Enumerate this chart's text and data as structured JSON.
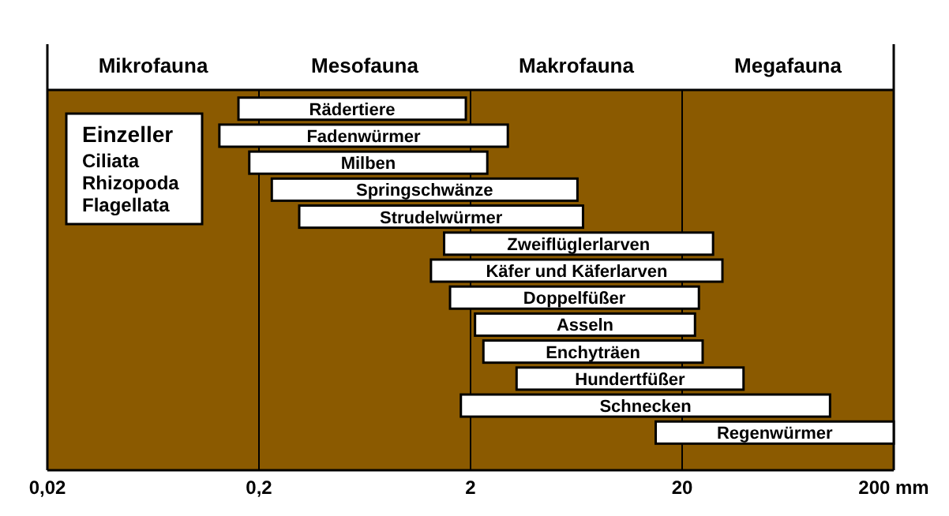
{
  "chart_data": {
    "type": "bar",
    "orientation": "horizontal",
    "log": "x",
    "categories": [
      "Rädertiere",
      "Fadenwürmer",
      "Milben",
      "Springschwänze",
      "Strudelwürmer",
      "Zweiflüglerlarven",
      "Käfer und Käferlarven",
      "Doppelfüßer",
      "Asseln",
      "Enchyträen",
      "Hundertfüßer",
      "Schnecken",
      "Regenwürmer"
    ],
    "base": [
      0.16,
      0.13,
      0.18,
      0.23,
      0.31,
      1.5,
      1.3,
      1.6,
      2.1,
      2.3,
      3.3,
      1.8,
      15
    ],
    "values": [
      1.74,
      2.87,
      2.22,
      6.17,
      6.49,
      26.5,
      29.7,
      22.4,
      20.9,
      22.7,
      35.7,
      98.2,
      185
    ],
    "color": "#ffffff",
    "xlim": [
      0.02,
      200
    ],
    "xticks": [
      {
        "value": 0.02,
        "label": "0,02"
      },
      {
        "value": 0.2,
        "label": "0,2"
      },
      {
        "value": 2,
        "label": "2"
      },
      {
        "value": 20,
        "label": "20"
      },
      {
        "value": 200,
        "label": "200 mm"
      }
    ],
    "grid": "x",
    "bands": [
      {
        "axis": "x",
        "from": 0.02,
        "to": 0.2,
        "label": "Mikrofauna",
        "color": "#8b5a00"
      },
      {
        "axis": "x",
        "from": 0.2,
        "to": 2,
        "label": "Mesofauna",
        "color": "#8b5a00"
      },
      {
        "axis": "x",
        "from": 2,
        "to": 20,
        "label": "Makrofauna",
        "color": "#8b5a00"
      },
      {
        "axis": "x",
        "from": 20,
        "to": 200,
        "label": "Megafauna",
        "color": "#8b5a00"
      }
    ],
    "annotations": [
      "Einzeller",
      "Ciliata",
      "Rhizopoda",
      "Flagellata"
    ]
  }
}
